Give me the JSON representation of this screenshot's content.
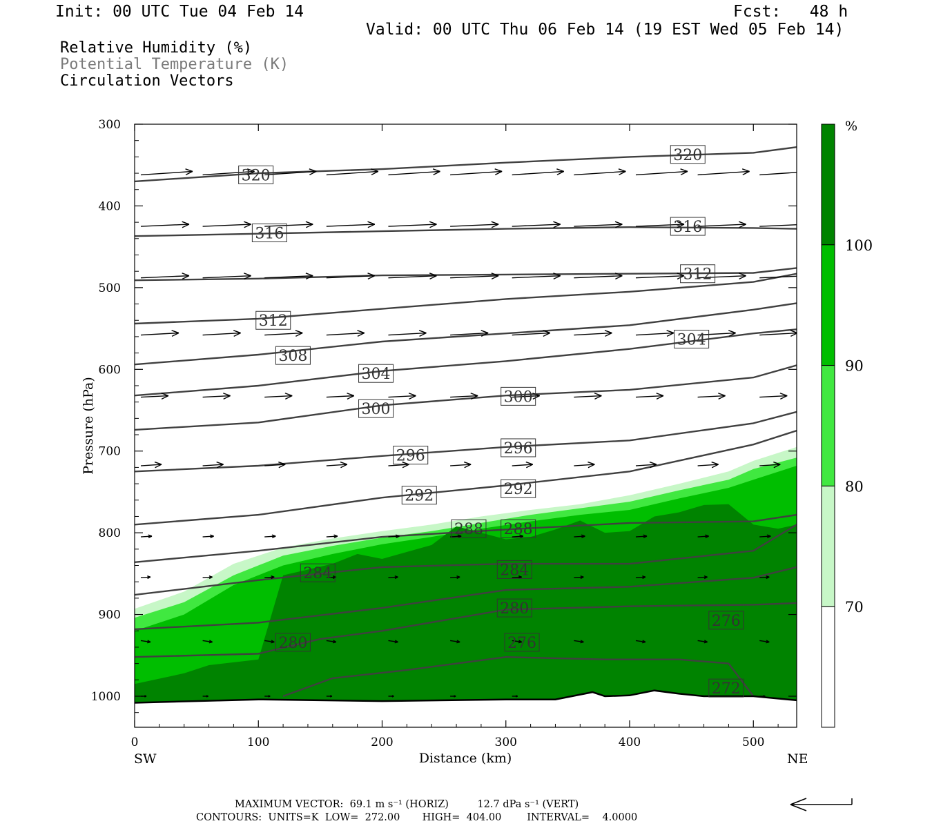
{
  "header": {
    "init": "Init: 00 UTC Tue 04 Feb 14",
    "fcst": "Fcst:   48 h",
    "valid": "Valid: 00 UTC Thu 06 Feb 14 (19 EST Wed 05 Feb 14)"
  },
  "legend": {
    "rh": "Relative Humidity (%)",
    "theta": "Potential Temperature (K)",
    "vectors": "Circulation Vectors"
  },
  "colors": {
    "rh_70_80": "#c7f7c7",
    "rh_80_90": "#40e840",
    "rh_90_100": "#00be00",
    "rh_100": "#008300",
    "contour": "#404040"
  },
  "chart_data": {
    "type": "cross-section",
    "xlabel": "Distance (km)",
    "ylabel": "Pressure (hPa)",
    "x_ticks": [
      0,
      100,
      200,
      300,
      400,
      500
    ],
    "y_ticks": [
      300,
      400,
      500,
      600,
      700,
      800,
      900,
      1000
    ],
    "xlim": [
      0,
      535
    ],
    "ylim": [
      1038,
      300
    ],
    "left_label": "SW",
    "right_label": "NE",
    "colorbar": {
      "unit": "%",
      "levels": [
        70,
        80,
        90,
        100
      ],
      "ticks": [
        "100",
        "90",
        "80",
        "70"
      ]
    },
    "rh_shading": [
      {
        "level": 70,
        "top": [
          [
            0,
            893
          ],
          [
            40,
            872
          ],
          [
            80,
            838
          ],
          [
            120,
            818
          ],
          [
            160,
            807
          ],
          [
            200,
            798
          ],
          [
            240,
            790
          ],
          [
            280,
            780
          ],
          [
            320,
            772
          ],
          [
            360,
            765
          ],
          [
            400,
            754
          ],
          [
            440,
            740
          ],
          [
            480,
            725
          ],
          [
            500,
            712
          ],
          [
            535,
            695
          ]
        ]
      },
      {
        "level": 80,
        "top": [
          [
            0,
            904
          ],
          [
            40,
            885
          ],
          [
            80,
            852
          ],
          [
            120,
            828
          ],
          [
            160,
            816
          ],
          [
            200,
            806
          ],
          [
            240,
            798
          ],
          [
            280,
            788
          ],
          [
            320,
            778
          ],
          [
            360,
            770
          ],
          [
            400,
            762
          ],
          [
            440,
            748
          ],
          [
            480,
            735
          ],
          [
            500,
            722
          ],
          [
            535,
            708
          ]
        ]
      },
      {
        "level": 90,
        "top": [
          [
            0,
            920
          ],
          [
            40,
            900
          ],
          [
            80,
            864
          ],
          [
            120,
            840
          ],
          [
            160,
            826
          ],
          [
            200,
            814
          ],
          [
            240,
            805
          ],
          [
            280,
            795
          ],
          [
            320,
            786
          ],
          [
            360,
            778
          ],
          [
            400,
            772
          ],
          [
            440,
            758
          ],
          [
            480,
            745
          ],
          [
            500,
            735
          ],
          [
            535,
            718
          ]
        ]
      },
      {
        "level": 100,
        "top": [
          [
            0,
            985
          ],
          [
            40,
            972
          ],
          [
            60,
            962
          ],
          [
            100,
            955
          ],
          [
            120,
            852
          ],
          [
            160,
            838
          ],
          [
            180,
            826
          ],
          [
            200,
            832
          ],
          [
            240,
            815
          ],
          [
            260,
            792
          ],
          [
            280,
            800
          ],
          [
            300,
            808
          ],
          [
            320,
            805
          ],
          [
            340,
            796
          ],
          [
            360,
            785
          ],
          [
            380,
            800
          ],
          [
            400,
            798
          ],
          [
            420,
            780
          ],
          [
            440,
            775
          ],
          [
            460,
            766
          ],
          [
            480,
            765
          ],
          [
            500,
            790
          ],
          [
            520,
            795
          ],
          [
            535,
            790
          ]
        ]
      }
    ],
    "theta_contours": [
      {
        "k": 320,
        "p": [
          [
            0,
            370
          ],
          [
            100,
            360
          ],
          [
            200,
            355
          ],
          [
            300,
            347
          ],
          [
            400,
            340
          ],
          [
            500,
            335
          ],
          [
            535,
            328
          ]
        ]
      },
      {
        "k": 316,
        "p": [
          [
            0,
            437
          ],
          [
            100,
            434
          ],
          [
            200,
            431
          ],
          [
            300,
            428
          ],
          [
            400,
            426
          ],
          [
            500,
            427
          ],
          [
            535,
            428
          ]
        ]
      },
      {
        "k": 312,
        "p": [
          [
            0,
            491
          ],
          [
            100,
            489
          ],
          [
            200,
            485
          ],
          [
            300,
            484
          ],
          [
            400,
            483
          ],
          [
            500,
            482
          ],
          [
            535,
            476
          ]
        ]
      },
      {
        "k": 312,
        "p": [
          [
            0,
            544
          ],
          [
            100,
            538
          ],
          [
            200,
            526
          ],
          [
            300,
            514
          ],
          [
            400,
            505
          ],
          [
            500,
            493
          ],
          [
            535,
            483
          ]
        ]
      },
      {
        "k": 308,
        "p": [
          [
            0,
            594
          ],
          [
            100,
            582
          ],
          [
            200,
            566
          ],
          [
            300,
            556
          ],
          [
            400,
            546
          ],
          [
            500,
            527
          ],
          [
            535,
            519
          ]
        ]
      },
      {
        "k": 304,
        "p": [
          [
            0,
            632
          ],
          [
            100,
            620
          ],
          [
            200,
            602
          ],
          [
            300,
            590
          ],
          [
            400,
            575
          ],
          [
            500,
            556
          ],
          [
            535,
            551
          ]
        ]
      },
      {
        "k": 300,
        "p": [
          [
            0,
            674
          ],
          [
            100,
            665
          ],
          [
            200,
            644
          ],
          [
            300,
            632
          ],
          [
            400,
            625
          ],
          [
            500,
            610
          ],
          [
            535,
            595
          ]
        ]
      },
      {
        "k": 296,
        "p": [
          [
            0,
            725
          ],
          [
            100,
            718
          ],
          [
            200,
            706
          ],
          [
            300,
            695
          ],
          [
            400,
            687
          ],
          [
            500,
            666
          ],
          [
            535,
            652
          ]
        ]
      },
      {
        "k": 292,
        "p": [
          [
            0,
            790
          ],
          [
            100,
            778
          ],
          [
            200,
            757
          ],
          [
            300,
            742
          ],
          [
            400,
            725
          ],
          [
            500,
            692
          ],
          [
            535,
            675
          ]
        ]
      },
      {
        "k": 288,
        "p": [
          [
            0,
            836
          ],
          [
            100,
            822
          ],
          [
            200,
            805
          ],
          [
            300,
            796
          ],
          [
            400,
            788
          ],
          [
            500,
            786
          ],
          [
            535,
            778
          ]
        ]
      },
      {
        "k": 284,
        "p": [
          [
            0,
            876
          ],
          [
            100,
            858
          ],
          [
            200,
            842
          ],
          [
            300,
            838
          ],
          [
            400,
            838
          ],
          [
            500,
            822
          ],
          [
            535,
            790
          ]
        ]
      },
      {
        "k": 280,
        "p": [
          [
            0,
            918
          ],
          [
            100,
            910
          ],
          [
            200,
            892
          ],
          [
            300,
            870
          ],
          [
            400,
            866
          ],
          [
            500,
            855
          ],
          [
            535,
            842
          ]
        ]
      },
      {
        "k": 276,
        "p": [
          [
            0,
            952
          ],
          [
            100,
            948
          ],
          [
            150,
            930
          ],
          [
            200,
            920
          ],
          [
            300,
            894
          ],
          [
            400,
            890
          ],
          [
            500,
            888
          ],
          [
            535,
            886
          ]
        ]
      },
      {
        "k": 272,
        "p": [
          [
            120,
            1000
          ],
          [
            160,
            978
          ],
          [
            220,
            968
          ],
          [
            300,
            952
          ],
          [
            380,
            955
          ],
          [
            440,
            955
          ],
          [
            480,
            960
          ],
          [
            500,
            1000
          ]
        ]
      }
    ],
    "theta_labels": [
      {
        "text": "320",
        "x": 98,
        "p": 362
      },
      {
        "text": "320",
        "x": 447,
        "p": 337
      },
      {
        "text": "316",
        "x": 109,
        "p": 433
      },
      {
        "text": "316",
        "x": 447,
        "p": 425
      },
      {
        "text": "312",
        "x": 455,
        "p": 483
      },
      {
        "text": "312",
        "x": 112,
        "p": 540
      },
      {
        "text": "308",
        "x": 128,
        "p": 583
      },
      {
        "text": "304",
        "x": 195,
        "p": 605
      },
      {
        "text": "304",
        "x": 450,
        "p": 563
      },
      {
        "text": "300",
        "x": 195,
        "p": 648
      },
      {
        "text": "300",
        "x": 310,
        "p": 633
      },
      {
        "text": "296",
        "x": 223,
        "p": 705
      },
      {
        "text": "296",
        "x": 310,
        "p": 696
      },
      {
        "text": "292",
        "x": 230,
        "p": 754
      },
      {
        "text": "292",
        "x": 310,
        "p": 746
      },
      {
        "text": "288",
        "x": 270,
        "p": 795
      },
      {
        "text": "288",
        "x": 310,
        "p": 795
      },
      {
        "text": "284",
        "x": 148,
        "p": 849
      },
      {
        "text": "284",
        "x": 307,
        "p": 845
      },
      {
        "text": "280",
        "x": 128,
        "p": 934
      },
      {
        "text": "280",
        "x": 307,
        "p": 892
      },
      {
        "text": "276",
        "x": 313,
        "p": 934
      },
      {
        "text": "276",
        "x": 478,
        "p": 907
      },
      {
        "text": "272",
        "x": 478,
        "p": 990
      }
    ],
    "vector_rows": [
      {
        "p": 362,
        "dp": -5,
        "len": 75
      },
      {
        "p": 425,
        "dp": -3,
        "len": 70
      },
      {
        "p": 488,
        "dp": -3,
        "len": 70
      },
      {
        "p": 558,
        "dp": -3,
        "len": 55
      },
      {
        "p": 634,
        "dp": -2,
        "len": 40
      },
      {
        "p": 718,
        "dp": -2,
        "len": 30
      },
      {
        "p": 805,
        "dp": -1,
        "len": 16
      },
      {
        "p": 855,
        "dp": -1,
        "len": 14
      },
      {
        "p": 932,
        "dp": 2,
        "len": 14
      },
      {
        "p": 1000,
        "dp": 0,
        "len": 8
      }
    ],
    "vector_x": [
      5,
      55,
      105,
      155,
      205,
      255,
      305,
      355,
      405,
      455,
      505
    ],
    "surface": [
      [
        0,
        1008
      ],
      [
        100,
        1004
      ],
      [
        200,
        1006
      ],
      [
        300,
        1004
      ],
      [
        340,
        1004
      ],
      [
        370,
        995
      ],
      [
        380,
        1000
      ],
      [
        400,
        999
      ],
      [
        420,
        993
      ],
      [
        440,
        997
      ],
      [
        460,
        1000
      ],
      [
        500,
        1000
      ],
      [
        535,
        1005
      ]
    ],
    "footer": {
      "max_vector": "MAXIMUM VECTOR:  69.1 m s⁻¹ (HORIZ)         12.7 dPa s⁻¹ (VERT)",
      "contours": "CONTOURS:  UNITS=K  LOW=  272.00       HIGH=  404.00        INTERVAL=    4.0000"
    }
  }
}
